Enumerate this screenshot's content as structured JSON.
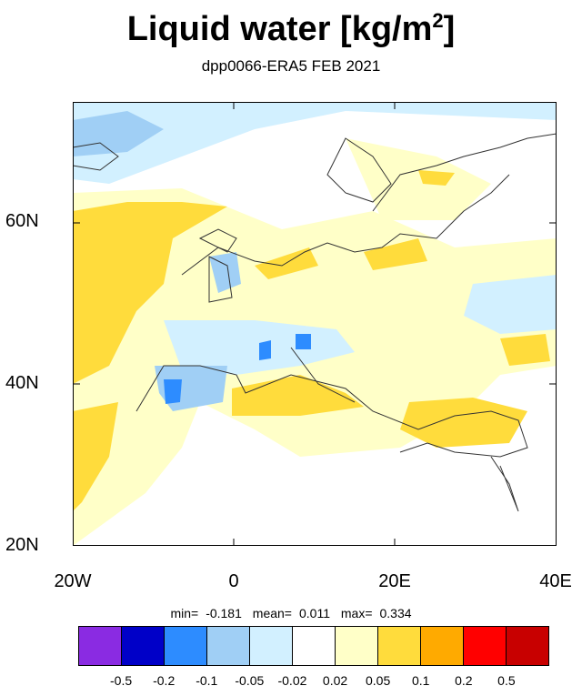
{
  "title": {
    "main": "Liquid water  [kg/m",
    "sup": "2",
    "close": "]"
  },
  "subtitle": "dpp0066-ERA5 FEB 2021",
  "map": {
    "region": "Europe",
    "lat_labels": [
      "60N",
      "40N",
      "20N"
    ],
    "lon_labels": [
      "20W",
      "0",
      "20E",
      "40E"
    ]
  },
  "stats": {
    "min_label": "min=",
    "min": "-0.181",
    "mean_label": "mean=",
    "mean": "0.011",
    "max_label": "max=",
    "max": "0.334"
  },
  "colorbar": {
    "colors": [
      "#8a2be2",
      "#0000c8",
      "#2d8cff",
      "#a0cff5",
      "#d2f0ff",
      "#ffffff",
      "#ffffc8",
      "#ffdc3c",
      "#ffaa00",
      "#ff0000",
      "#c80000"
    ],
    "labels": [
      "-0.5",
      "-0.2",
      "-0.1",
      "-0.05",
      "-0.02",
      "0.02",
      "0.05",
      "0.1",
      "0.2",
      "0.5"
    ]
  }
}
